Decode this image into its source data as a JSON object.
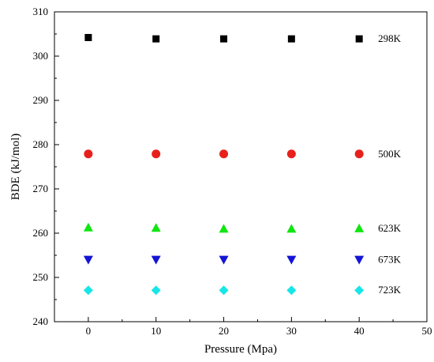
{
  "chart_data": {
    "type": "scatter",
    "title": "",
    "xlabel": "Pressure (Mpa)",
    "ylabel": "BDE (kJ/mol)",
    "xlim": [
      -5,
      50
    ],
    "ylim": [
      240,
      310
    ],
    "xticks": [
      0,
      10,
      20,
      30,
      40,
      50
    ],
    "yticks": [
      240,
      250,
      260,
      270,
      280,
      290,
      300,
      310
    ],
    "grid": false,
    "legend": "none",
    "x": [
      0,
      10,
      20,
      30,
      40
    ],
    "series": [
      {
        "name": "298K",
        "marker": "square",
        "color": "#000000",
        "values": [
          304.2,
          303.9,
          303.9,
          303.9,
          303.9
        ]
      },
      {
        "name": "500K",
        "marker": "circle",
        "color": "#e8201b",
        "values": [
          277.9,
          277.9,
          277.9,
          277.9,
          277.9
        ]
      },
      {
        "name": "623K",
        "marker": "triangle-up",
        "color": "#10e610",
        "values": [
          261.3,
          261.2,
          261.0,
          261.0,
          261.1
        ]
      },
      {
        "name": "673K",
        "marker": "triangle-down",
        "color": "#1414d6",
        "values": [
          254.0,
          254.0,
          254.0,
          254.0,
          254.0
        ]
      },
      {
        "name": "723K",
        "marker": "diamond",
        "color": "#17e6e6",
        "values": [
          247.1,
          247.1,
          247.1,
          247.1,
          247.1
        ]
      }
    ]
  }
}
